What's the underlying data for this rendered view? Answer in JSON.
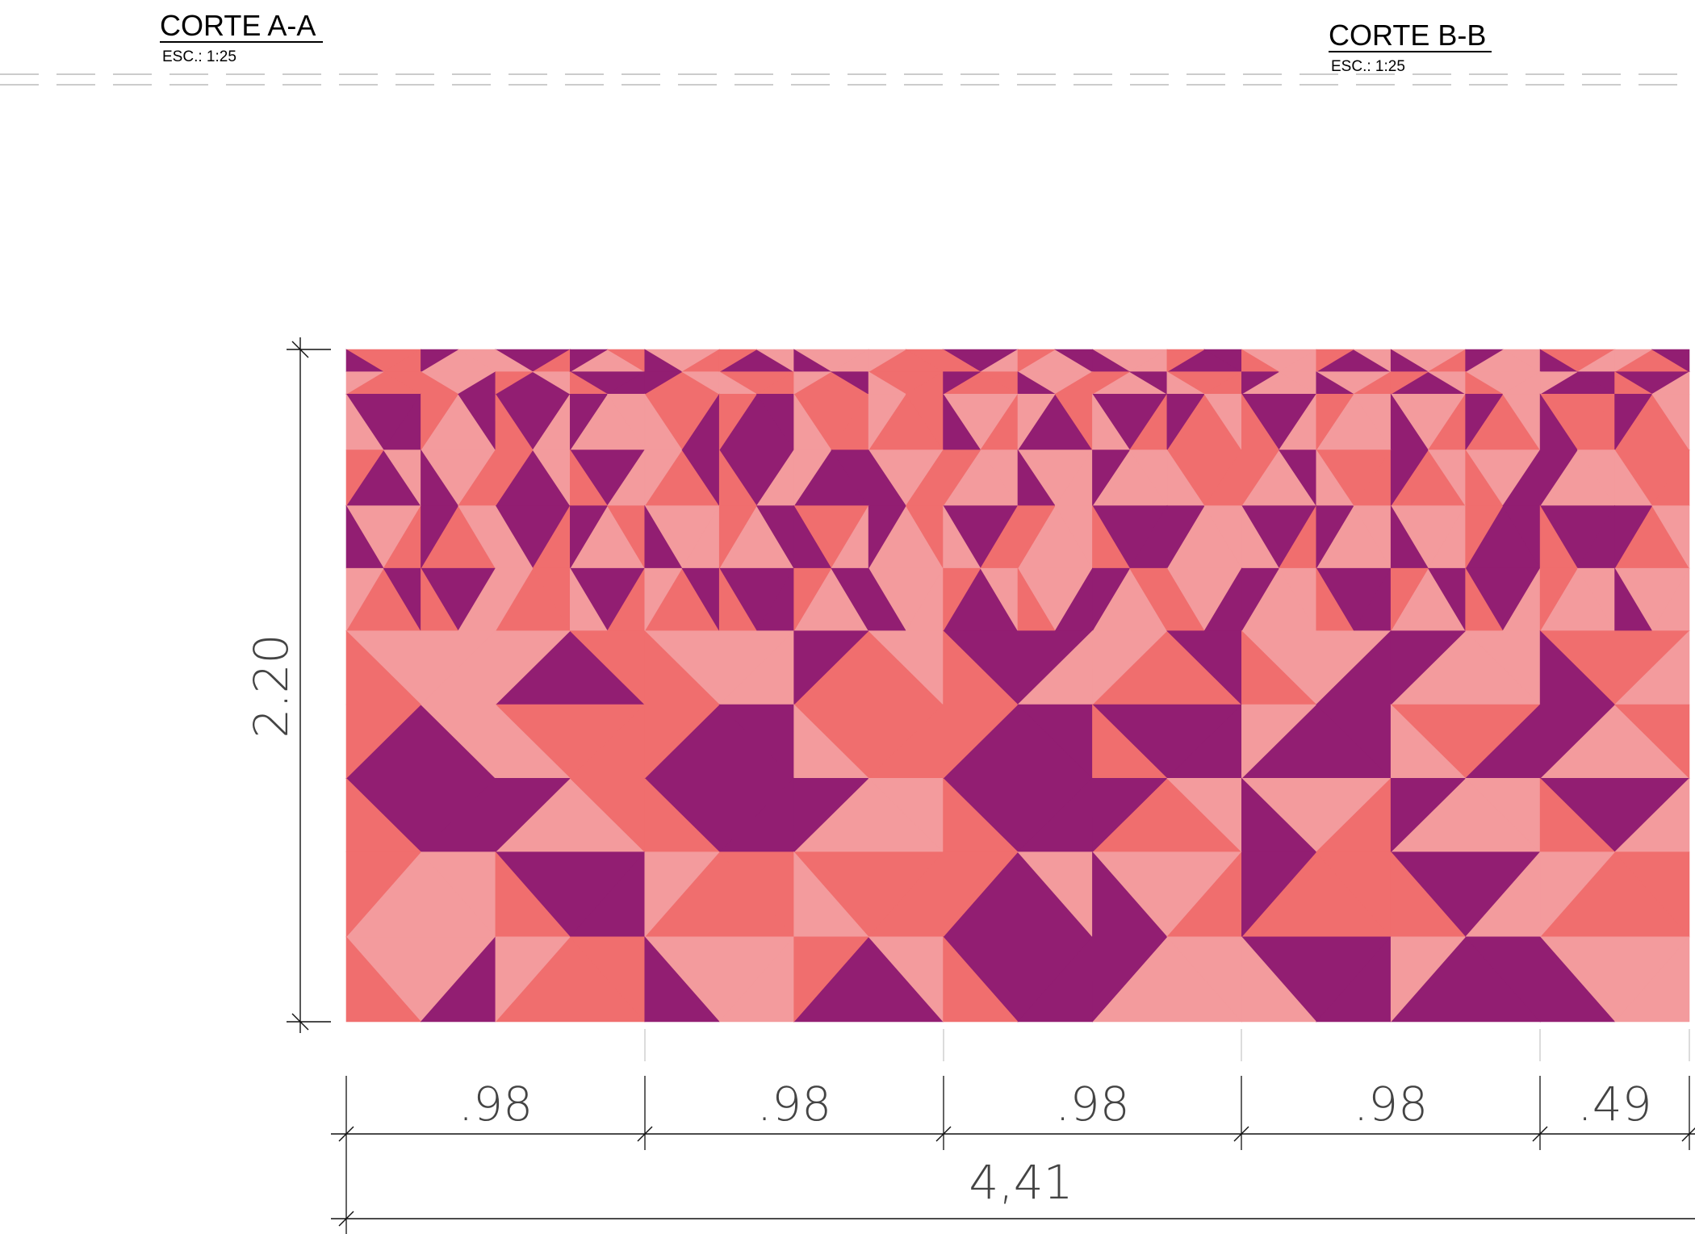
{
  "sections": [
    {
      "title": "CORTE A-A",
      "scale": "ESC.: 1:25"
    },
    {
      "title": "CORTE B-B",
      "scale": "ESC.: 1:25"
    }
  ],
  "elevation": {
    "height_label": "2.20",
    "total_width_label": "4,41",
    "module_labels": [
      ".98",
      ".98",
      ".98",
      ".98",
      ".49"
    ]
  },
  "colors": {
    "purple": "#921e72",
    "coral": "#f06e6e",
    "pink": "#f39b9d",
    "lines": "#111111"
  },
  "pattern": {
    "columns": 18,
    "band_scale": [
      1,
      1,
      2.5,
      2.5,
      2.8,
      2.8,
      3.3,
      3.3,
      3.3,
      3.8,
      3.8
    ]
  }
}
